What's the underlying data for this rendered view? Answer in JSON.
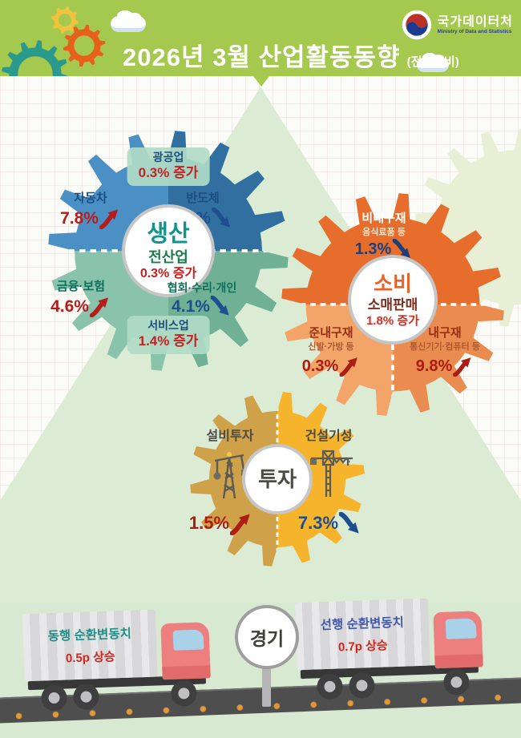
{
  "colors": {
    "header_green": "#a5c84e",
    "production_blue_left": "#4b90c4",
    "production_blue_right": "#306f9f",
    "production_teal_left": "#89c3ab",
    "production_teal_right": "#70b195",
    "consumption_orange_top": "#e76d2c",
    "consumption_orange_bottom": "#f2a469",
    "investment_left": "#cfa149",
    "investment_right": "#f5b42c",
    "up_red": "#b51d1d",
    "down_blue": "#1d4e8d"
  },
  "header": {
    "title": "2026년  3월 산업활동동향",
    "subtitle": "(전월대비)",
    "logo_title": "국가데이터처",
    "logo_subtitle": "Ministry of Data and Statistics"
  },
  "production": {
    "center_title": "생산",
    "center_sub": "전산업",
    "center_value": "0.3% 증가",
    "mining_label": "광공업",
    "mining_value": "0.3% 증가",
    "service_label": "서비스업",
    "service_value": "1.4% 증가",
    "items": [
      {
        "label": "자동차",
        "value": "7.8%",
        "direction": "up"
      },
      {
        "label": "반도체",
        "value": "8.1%",
        "direction": "down"
      },
      {
        "label": "금융·보험",
        "value": "4.6%",
        "direction": "up"
      },
      {
        "label": "협회·수리·개인",
        "value": "4.1%",
        "direction": "down"
      }
    ]
  },
  "consumption": {
    "center_title": "소비",
    "center_sub": "소매판매",
    "center_value": "1.8% 증가",
    "items": [
      {
        "label": "비내구재",
        "sublabel": "음식료품 등",
        "value": "1.3%",
        "direction": "down"
      },
      {
        "label": "준내구재",
        "sublabel": "신발·가방 등",
        "value": "0.3%",
        "direction": "up"
      },
      {
        "label": "내구재",
        "sublabel": "통신기기·컴퓨터 등",
        "value": "9.8%",
        "direction": "up"
      }
    ]
  },
  "investment": {
    "center_title": "투자",
    "items": [
      {
        "label": "설비투자",
        "value": "1.5%",
        "direction": "up"
      },
      {
        "label": "건설기성",
        "value": "7.3%",
        "direction": "down"
      }
    ]
  },
  "economy": {
    "sign": "경기",
    "left_truck": {
      "label": "동행 순환변동치",
      "value": "0.5p 상승"
    },
    "right_truck": {
      "label": "선행 순환변동치",
      "value": "0.7p 상승"
    }
  }
}
